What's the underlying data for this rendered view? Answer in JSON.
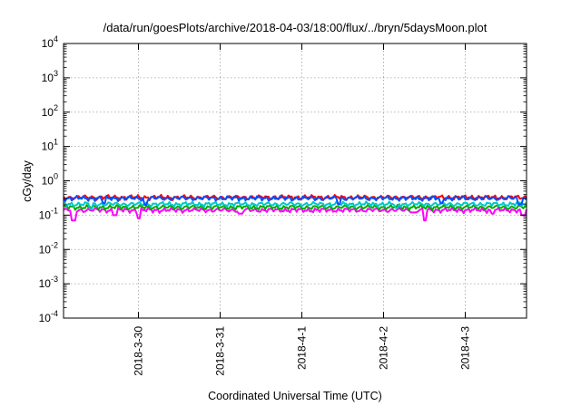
{
  "chart_data": {
    "type": "line",
    "title": "/data/run/goesPlots/archive/2018-04-03/18:00/flux/../bryn/5daysMoon.plot",
    "xlabel": "Coordinated Universal Time (UTC)",
    "ylabel": "cGy/day",
    "y_scale": "log",
    "ylim": [
      0.0001,
      10000
    ],
    "y_ticks": [
      {
        "value": 0.0001,
        "base": "10",
        "exp": "-4"
      },
      {
        "value": 0.001,
        "base": "10",
        "exp": "-3"
      },
      {
        "value": 0.01,
        "base": "10",
        "exp": "-2"
      },
      {
        "value": 0.1,
        "base": "10",
        "exp": "-1"
      },
      {
        "value": 1,
        "base": "10",
        "exp": "0"
      },
      {
        "value": 10,
        "base": "10",
        "exp": "1"
      },
      {
        "value": 100,
        "base": "10",
        "exp": "2"
      },
      {
        "value": 1000,
        "base": "10",
        "exp": "3"
      },
      {
        "value": 10000,
        "base": "10",
        "exp": "4"
      }
    ],
    "xlim": [
      "2018-03-29 02:00",
      "2018-04-03 18:00"
    ],
    "x_ticks": [
      {
        "value": "2018-03-30 00:00",
        "label": "2018-3-30"
      },
      {
        "value": "2018-03-31 00:00",
        "label": "2018-3-31"
      },
      {
        "value": "2018-04-01 00:00",
        "label": "2018-4-1"
      },
      {
        "value": "2018-04-02 00:00",
        "label": "2018-4-2"
      },
      {
        "value": "2018-04-03 00:00",
        "label": "2018-4-3"
      }
    ],
    "grid": true,
    "legend": "none",
    "series": [
      {
        "color": "#ff00ff",
        "level": 0.14,
        "spikes": [
          {
            "x": "2018-03-29 05:00",
            "y": 0.07
          },
          {
            "x": "2018-03-29 17:00",
            "y": 0.1
          },
          {
            "x": "2018-03-30 00:00",
            "y": 0.08
          },
          {
            "x": "2018-03-31 06:00",
            "y": 0.11
          },
          {
            "x": "2018-04-02 09:00",
            "y": 0.12
          },
          {
            "x": "2018-04-02 12:00",
            "y": 0.07
          },
          {
            "x": "2018-04-03 08:00",
            "y": 0.11
          },
          {
            "x": "2018-04-03 17:00",
            "y": 0.1
          }
        ]
      },
      {
        "color": "#00aa00",
        "level": 0.17,
        "spikes": []
      },
      {
        "color": "#00c8c8",
        "level": 0.21,
        "spikes": [
          {
            "x": "2018-03-29 10:00",
            "y": 0.15
          },
          {
            "x": "2018-04-02 04:00",
            "y": 0.16
          }
        ]
      },
      {
        "color": "#ff0000",
        "level": 0.33,
        "spikes": []
      },
      {
        "color": "#0050ff",
        "level": 0.31,
        "spikes": [
          {
            "x": "2018-03-29 14:00",
            "y": 0.22
          },
          {
            "x": "2018-03-30 02:00",
            "y": 0.2
          },
          {
            "x": "2018-04-01 11:00",
            "y": 0.21
          },
          {
            "x": "2018-04-02 17:00",
            "y": 0.22
          },
          {
            "x": "2018-04-03 16:00",
            "y": 0.21
          }
        ]
      }
    ]
  }
}
